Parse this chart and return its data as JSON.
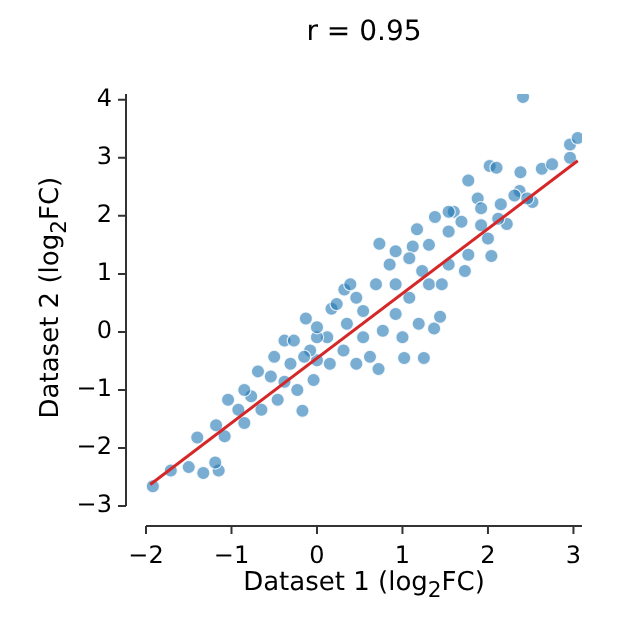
{
  "chart_data": {
    "type": "scatter",
    "title": "r = 0.95",
    "xlabel": "Dataset 1 (log$_{2}$FC)",
    "ylabel": "Dataset 2 (log$_{2}$FC)",
    "xlim": [
      -2,
      3.1
    ],
    "ylim": [
      -3,
      4.1
    ],
    "xticks": [
      -2,
      -1,
      0,
      1,
      2,
      3
    ],
    "yticks": [
      -3,
      -2,
      -1,
      0,
      1,
      2,
      3,
      4
    ],
    "grid": false,
    "legend": false,
    "series": [
      {
        "color": "#1f77b4",
        "marker": "circle",
        "x": [
          -1.92,
          -1.71,
          -1.5,
          -1.33,
          -1.15,
          -1.4,
          -1.19,
          -1.08,
          -1.18,
          -1.04,
          -0.85,
          -0.69,
          -0.38,
          -0.17,
          -0.13,
          -0.38,
          0.0,
          0.17,
          0.32,
          0.46,
          0.73,
          0.72,
          1.02,
          1.25,
          1.37,
          1.44,
          1.12,
          1.17,
          1.38,
          1.6,
          1.77,
          1.88,
          2.02,
          2.1,
          2.04,
          1.73,
          2.38,
          2.41,
          2.63,
          2.75,
          2.96,
          2.96,
          3.05,
          2.52,
          2.37,
          2.15,
          2.22,
          2.0,
          1.77,
          1.54,
          1.31,
          1.08,
          0.92,
          0.77,
          0.54,
          0.31,
          0.15,
          -0.04,
          -0.23,
          -0.46,
          -0.65,
          -0.77,
          -0.54,
          -0.31,
          -0.08,
          0.12,
          0.35,
          0.54,
          0.69,
          0.85,
          1.08,
          1.31,
          1.54,
          1.69,
          1.92,
          2.31,
          2.46,
          1.19,
          1.0,
          0.62,
          0.39,
          0.23,
          0.0,
          -0.15,
          0.92,
          1.23,
          1.46,
          1.92,
          2.12,
          -0.92,
          -0.85,
          -0.5,
          -0.27,
          0.0,
          0.46,
          0.92,
          1.54
        ],
        "values": [
          -2.66,
          -2.39,
          -2.33,
          -2.43,
          -2.39,
          -1.82,
          -2.25,
          -1.8,
          -1.61,
          -1.17,
          -1.57,
          -0.68,
          -0.15,
          -1.36,
          0.23,
          -0.86,
          -0.49,
          0.4,
          0.73,
          -0.55,
          1.52,
          -0.64,
          -0.45,
          -0.45,
          0.06,
          0.26,
          1.47,
          1.77,
          1.98,
          2.07,
          2.61,
          2.3,
          2.86,
          2.83,
          1.31,
          1.05,
          2.75,
          4.05,
          2.81,
          2.89,
          3.0,
          3.23,
          3.34,
          2.24,
          2.43,
          2.2,
          1.86,
          1.61,
          1.33,
          1.16,
          0.82,
          0.59,
          0.31,
          0.02,
          -0.09,
          -0.32,
          -0.55,
          -0.83,
          -1.0,
          -1.17,
          -1.34,
          -1.11,
          -0.77,
          -0.55,
          -0.32,
          -0.09,
          0.14,
          0.36,
          0.82,
          1.16,
          1.27,
          1.5,
          1.73,
          1.9,
          2.13,
          2.35,
          2.3,
          0.14,
          -0.09,
          -0.43,
          0.82,
          0.48,
          -0.09,
          -0.43,
          0.82,
          1.05,
          0.82,
          1.84,
          1.95,
          -1.34,
          -1.0,
          -0.43,
          -0.15,
          0.08,
          0.59,
          1.39,
          2.07
        ]
      },
      {
        "type": "line",
        "color": "#d62728",
        "x": [
          -1.95,
          3.05
        ],
        "values": [
          -2.63,
          2.95
        ]
      }
    ]
  }
}
